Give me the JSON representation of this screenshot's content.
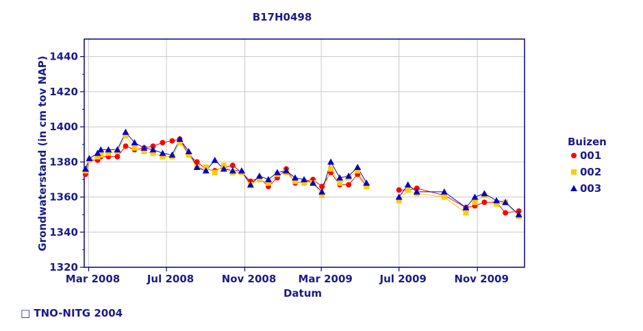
{
  "footer": {
    "copyright": "□ TNO-NITG 2004"
  },
  "chart_data": {
    "type": "line",
    "title": "B17H0498",
    "xlabel": "Datum",
    "ylabel": "Grondwaterstand (in cm tov NAP)",
    "ylim": [
      1320,
      1450
    ],
    "xlim": [
      "2008-02-23",
      "2010-01-14"
    ],
    "y_ticks": [
      1320,
      1340,
      1360,
      1380,
      1400,
      1420,
      1440
    ],
    "x_ticks": [
      {
        "date": "2008-03-01",
        "label": "Mar 2008"
      },
      {
        "date": "2008-07-01",
        "label": "Jul 2008"
      },
      {
        "date": "2008-11-01",
        "label": "Nov 2008"
      },
      {
        "date": "2009-03-01",
        "label": "Mar 2009"
      },
      {
        "date": "2009-07-01",
        "label": "Jul 2009"
      },
      {
        "date": "2009-11-01",
        "label": "Nov 2009"
      }
    ],
    "grid": true,
    "legend": {
      "title": "Buizen",
      "position": "right"
    },
    "line_color": "#0000cc",
    "series": [
      {
        "name": "001",
        "marker": "circle",
        "color": "#ff0000",
        "points": [
          [
            "2008-02-25",
            1373
          ],
          [
            "2008-03-02",
            1381
          ],
          [
            "2008-03-15",
            1381
          ],
          [
            "2008-03-20",
            1383
          ],
          [
            "2008-04-01",
            1383
          ],
          [
            "2008-04-15",
            1383
          ],
          [
            "2008-04-28",
            1389
          ],
          [
            "2008-05-12",
            1387
          ],
          [
            "2008-05-27",
            1388
          ],
          [
            "2008-06-10",
            1389
          ],
          [
            "2008-06-25",
            1391
          ],
          [
            "2008-07-10",
            1392
          ],
          [
            "2008-07-22",
            1393
          ],
          [
            "2008-08-05",
            1384
          ],
          [
            "2008-08-18",
            1380
          ],
          [
            "2008-09-01",
            1376
          ],
          [
            "2008-09-15",
            1375
          ],
          [
            "2008-09-29",
            1377
          ],
          [
            "2008-10-13",
            1378
          ],
          [
            "2008-10-27",
            1374
          ],
          [
            "2008-11-10",
            1369
          ],
          [
            "2008-11-24",
            1371
          ],
          [
            "2008-12-08",
            1366
          ],
          [
            "2008-12-22",
            1371
          ],
          [
            "2009-01-05",
            1376
          ],
          [
            "2009-01-19",
            1368
          ],
          [
            "2009-02-02",
            1369
          ],
          [
            "2009-02-16",
            1370
          ],
          [
            "2009-03-02",
            1366
          ],
          [
            "2009-03-16",
            1374
          ],
          [
            "2009-03-30",
            1367
          ],
          [
            "2009-04-13",
            1367
          ],
          [
            "2009-04-27",
            1373
          ],
          [
            "2009-05-11",
            1366
          ],
          null,
          [
            "2009-07-01",
            1364
          ],
          [
            "2009-07-15",
            1364
          ],
          [
            "2009-07-29",
            1365
          ],
          [
            "2009-09-10",
            1361
          ],
          [
            "2009-10-14",
            1354
          ],
          [
            "2009-10-28",
            1355
          ],
          [
            "2009-11-12",
            1357
          ],
          [
            "2009-12-01",
            1357
          ],
          [
            "2009-12-15",
            1351
          ],
          [
            "2010-01-05",
            1352
          ]
        ]
      },
      {
        "name": "002",
        "marker": "square",
        "color": "#ffcc00",
        "points": [
          [
            "2008-02-25",
            1375
          ],
          [
            "2008-03-02",
            1381
          ],
          [
            "2008-03-15",
            1383
          ],
          [
            "2008-03-20",
            1384
          ],
          [
            "2008-04-01",
            1385
          ],
          [
            "2008-04-15",
            1386
          ],
          [
            "2008-04-28",
            1395
          ],
          [
            "2008-05-12",
            1388
          ],
          [
            "2008-05-27",
            1386
          ],
          [
            "2008-06-10",
            1385
          ],
          [
            "2008-06-25",
            1383
          ],
          [
            "2008-07-10",
            1383
          ],
          [
            "2008-07-22",
            1391
          ],
          [
            "2008-08-05",
            1384
          ],
          [
            "2008-08-18",
            1377
          ],
          [
            "2008-09-01",
            1377
          ],
          [
            "2008-09-15",
            1374
          ],
          [
            "2008-09-29",
            1378
          ],
          [
            "2008-10-13",
            1374
          ],
          [
            "2008-10-27",
            1374
          ],
          [
            "2008-11-10",
            1367
          ],
          [
            "2008-11-24",
            1370
          ],
          [
            "2008-12-08",
            1368
          ],
          [
            "2008-12-22",
            1373
          ],
          [
            "2009-01-05",
            1374
          ],
          [
            "2009-01-19",
            1369
          ],
          [
            "2009-02-02",
            1368
          ],
          [
            "2009-02-16",
            1368
          ],
          [
            "2009-03-02",
            1361
          ],
          [
            "2009-03-16",
            1376
          ],
          [
            "2009-03-30",
            1368
          ],
          [
            "2009-04-13",
            1371
          ],
          [
            "2009-04-27",
            1375
          ],
          [
            "2009-05-11",
            1366
          ],
          null,
          [
            "2009-07-01",
            1358
          ],
          [
            "2009-07-15",
            1364
          ],
          [
            "2009-07-29",
            1362
          ],
          [
            "2009-09-10",
            1360
          ],
          [
            "2009-10-14",
            1351
          ],
          [
            "2009-10-28",
            1357
          ],
          [
            "2009-11-12",
            1361
          ],
          [
            "2009-12-01",
            1356
          ],
          [
            "2009-12-15",
            1357
          ],
          [
            "2010-01-05",
            1349
          ]
        ]
      },
      {
        "name": "003",
        "marker": "triangle",
        "color": "#0000cc",
        "points": [
          [
            "2008-02-25",
            1376
          ],
          [
            "2008-03-02",
            1382
          ],
          [
            "2008-03-15",
            1385
          ],
          [
            "2008-03-20",
            1387
          ],
          [
            "2008-04-01",
            1387
          ],
          [
            "2008-04-15",
            1387
          ],
          [
            "2008-04-28",
            1397
          ],
          [
            "2008-05-12",
            1391
          ],
          [
            "2008-05-27",
            1388
          ],
          [
            "2008-06-10",
            1387
          ],
          [
            "2008-06-25",
            1385
          ],
          [
            "2008-07-10",
            1384
          ],
          [
            "2008-07-22",
            1393
          ],
          [
            "2008-08-05",
            1386
          ],
          [
            "2008-08-18",
            1377
          ],
          [
            "2008-09-01",
            1375
          ],
          [
            "2008-09-15",
            1381
          ],
          [
            "2008-09-29",
            1376
          ],
          [
            "2008-10-13",
            1375
          ],
          [
            "2008-10-27",
            1375
          ],
          [
            "2008-11-10",
            1367
          ],
          [
            "2008-11-24",
            1372
          ],
          [
            "2008-12-08",
            1370
          ],
          [
            "2008-12-22",
            1374
          ],
          [
            "2009-01-05",
            1375
          ],
          [
            "2009-01-19",
            1371
          ],
          [
            "2009-02-02",
            1370
          ],
          [
            "2009-02-16",
            1368
          ],
          [
            "2009-03-02",
            1363
          ],
          [
            "2009-03-16",
            1380
          ],
          [
            "2009-03-30",
            1371
          ],
          [
            "2009-04-13",
            1372
          ],
          [
            "2009-04-27",
            1377
          ],
          [
            "2009-05-11",
            1368
          ],
          null,
          [
            "2009-07-01",
            1360
          ],
          [
            "2009-07-15",
            1367
          ],
          [
            "2009-07-29",
            1363
          ],
          [
            "2009-09-10",
            1363
          ],
          [
            "2009-10-14",
            1354
          ],
          [
            "2009-10-28",
            1360
          ],
          [
            "2009-11-12",
            1362
          ],
          [
            "2009-12-01",
            1358
          ],
          [
            "2009-12-15",
            1357
          ],
          [
            "2010-01-05",
            1350
          ]
        ]
      }
    ]
  }
}
